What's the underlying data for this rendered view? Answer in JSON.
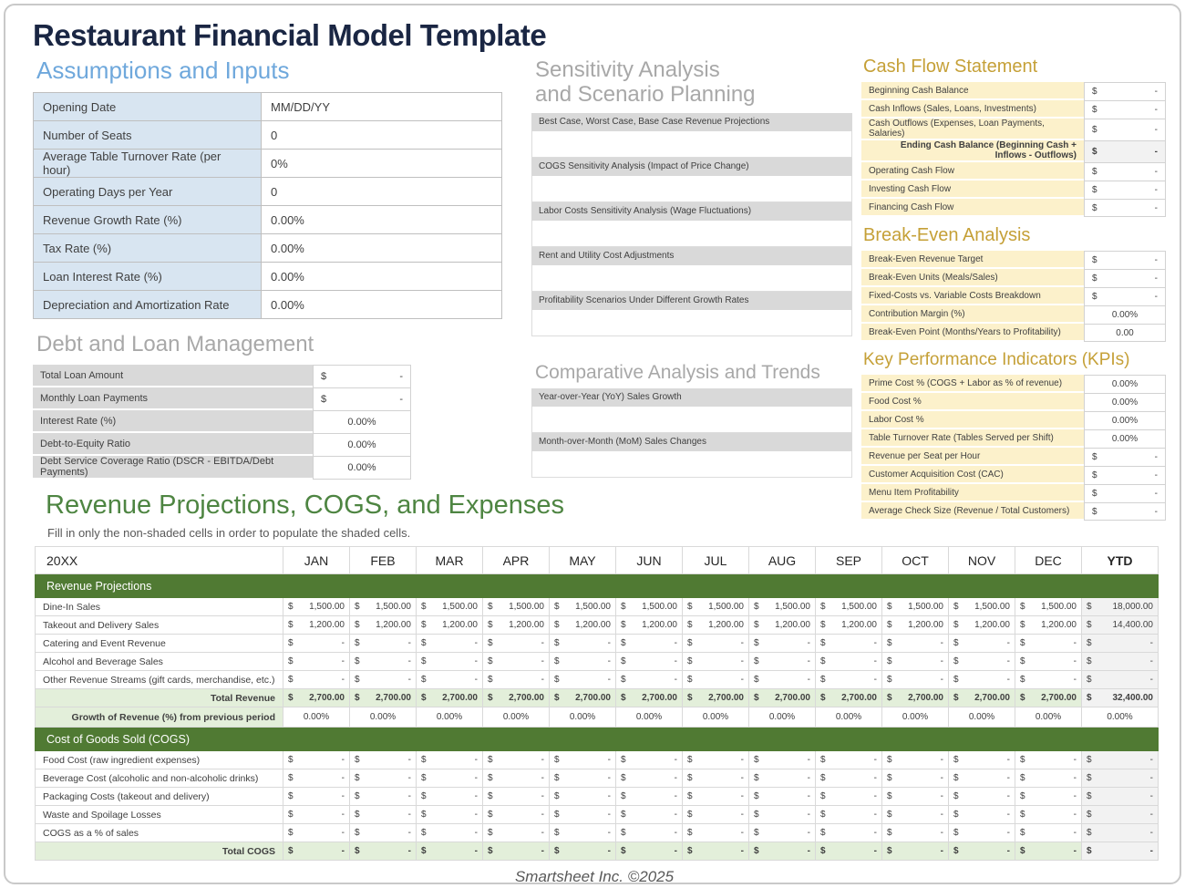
{
  "page": {
    "title": "Restaurant Financial Model Template",
    "footer": "Smartsheet Inc. ©2025"
  },
  "currency": "$",
  "assumptions": {
    "heading": "Assumptions and Inputs",
    "rows": [
      {
        "label": "Opening Date",
        "value": "MM/DD/YY"
      },
      {
        "label": "Number of Seats",
        "value": "0"
      },
      {
        "label": "Average Table Turnover Rate (per hour)",
        "value": "0%"
      },
      {
        "label": "Operating Days per Year",
        "value": "0"
      },
      {
        "label": "Revenue Growth Rate (%)",
        "value": "0.00%"
      },
      {
        "label": "Tax Rate (%)",
        "value": "0.00%"
      },
      {
        "label": "Loan Interest Rate (%)",
        "value": "0.00%"
      },
      {
        "label": "Depreciation and Amortization Rate",
        "value": "0.00%"
      }
    ]
  },
  "debt": {
    "heading": "Debt and Loan Management",
    "rows": [
      {
        "label": "Total Loan Amount",
        "type": "money",
        "value": "-"
      },
      {
        "label": "Monthly Loan Payments",
        "type": "money",
        "value": "-"
      },
      {
        "label": "Interest Rate (%)",
        "type": "pct",
        "value": "0.00%"
      },
      {
        "label": "Debt-to-Equity Ratio",
        "type": "pct",
        "value": "0.00%"
      },
      {
        "label": "Debt Service Coverage Ratio (DSCR - EBITDA/Debt Payments)",
        "type": "pct",
        "value": "0.00%"
      }
    ]
  },
  "sensitivity": {
    "heading_line1": "Sensitivity Analysis",
    "heading_line2": "and Scenario Planning",
    "items": [
      "Best Case, Worst Case, Base Case Revenue Projections",
      "COGS Sensitivity Analysis (Impact of Price Change)",
      "Labor Costs Sensitivity Analysis (Wage Fluctuations)",
      "Rent and Utility Cost Adjustments",
      "Profitability Scenarios Under Different Growth Rates"
    ]
  },
  "comparative": {
    "heading": "Comparative Analysis and Trends",
    "items": [
      "Year-over-Year (YoY) Sales Growth",
      "Month-over-Month (MoM) Sales Changes"
    ]
  },
  "cash_flow": {
    "heading": "Cash Flow Statement",
    "rows": [
      {
        "label": "Beginning Cash Balance",
        "type": "money",
        "value": "-"
      },
      {
        "label": "Cash Inflows (Sales, Loans, Investments)",
        "type": "money",
        "value": "-"
      },
      {
        "label": "Cash Outflows (Expenses, Loan Payments, Salaries)",
        "type": "money",
        "value": "-"
      },
      {
        "label": "Ending Cash Balance (Beginning Cash + Inflows - Outflows)",
        "type": "money",
        "value": "-",
        "bold": true,
        "shaded": true
      },
      {
        "label": "Operating Cash Flow",
        "type": "money",
        "value": "-"
      },
      {
        "label": "Investing Cash Flow",
        "type": "money",
        "value": "-"
      },
      {
        "label": "Financing Cash Flow",
        "type": "money",
        "value": "-"
      }
    ]
  },
  "break_even": {
    "heading": "Break-Even Analysis",
    "rows": [
      {
        "label": "Break-Even Revenue Target",
        "type": "money",
        "value": "-"
      },
      {
        "label": "Break-Even Units (Meals/Sales)",
        "type": "money",
        "value": "-"
      },
      {
        "label": "Fixed-Costs vs. Variable Costs Breakdown",
        "type": "money",
        "value": "-"
      },
      {
        "label": "Contribution Margin (%)",
        "type": "pct",
        "value": "0.00%"
      },
      {
        "label": "Break-Even Point (Months/Years to Profitability)",
        "type": "pct",
        "value": "0.00"
      }
    ]
  },
  "kpis": {
    "heading": "Key Performance Indicators (KPIs)",
    "rows": [
      {
        "label": "Prime Cost % (COGS + Labor as % of revenue)",
        "type": "pct",
        "value": "0.00%"
      },
      {
        "label": "Food Cost %",
        "type": "pct",
        "value": "0.00%"
      },
      {
        "label": "Labor Cost %",
        "type": "pct",
        "value": "0.00%"
      },
      {
        "label": "Table Turnover Rate (Tables Served per Shift)",
        "type": "pct",
        "value": "0.00%"
      },
      {
        "label": "Revenue per Seat per Hour",
        "type": "money",
        "value": "-"
      },
      {
        "label": "Customer Acquisition Cost (CAC)",
        "type": "money",
        "value": "-"
      },
      {
        "label": "Menu Item Profitability",
        "type": "money",
        "value": "-"
      },
      {
        "label": "Average Check Size (Revenue / Total Customers)",
        "type": "money",
        "value": "-"
      }
    ]
  },
  "projections": {
    "heading": "Revenue Projections, COGS, and Expenses",
    "note": "Fill in only the non-shaded cells in order to populate the shaded cells.",
    "year_label": "20XX",
    "months": [
      "JAN",
      "FEB",
      "MAR",
      "APR",
      "MAY",
      "JUN",
      "JUL",
      "AUG",
      "SEP",
      "OCT",
      "NOV",
      "DEC"
    ],
    "ytd_label": "YTD",
    "revenue_band": "Revenue Projections",
    "cogs_band": "Cost of Goods Sold (COGS)",
    "revenue_rows": [
      {
        "label": "Dine-In Sales",
        "monthly": "1,500.00",
        "ytd": "18,000.00"
      },
      {
        "label": "Takeout and Delivery Sales",
        "monthly": "1,200.00",
        "ytd": "14,400.00"
      },
      {
        "label": "Catering and Event Revenue",
        "monthly": "-",
        "ytd": "-"
      },
      {
        "label": "Alcohol and Beverage Sales",
        "monthly": "-",
        "ytd": "-"
      },
      {
        "label": "Other Revenue Streams (gift cards, merchandise, etc.)",
        "monthly": "-",
        "ytd": "-"
      }
    ],
    "total_revenue": {
      "label": "Total Revenue",
      "monthly": "2,700.00",
      "ytd": "32,400.00"
    },
    "growth": {
      "label": "Growth of Revenue (%) from previous period",
      "monthly": "0.00%",
      "ytd": "0.00%"
    },
    "cogs_rows": [
      {
        "label": "Food Cost (raw ingredient expenses)",
        "monthly": "-",
        "ytd": "-"
      },
      {
        "label": "Beverage Cost (alcoholic and non-alcoholic drinks)",
        "monthly": "-",
        "ytd": "-"
      },
      {
        "label": "Packaging Costs (takeout and delivery)",
        "monthly": "-",
        "ytd": "-"
      },
      {
        "label": "Waste and Spoilage Losses",
        "monthly": "-",
        "ytd": "-"
      },
      {
        "label": "COGS as a % of sales",
        "monthly": "-",
        "ytd": "-"
      }
    ],
    "total_cogs": {
      "label": "Total COGS",
      "monthly": "-",
      "ytd": "-"
    }
  }
}
